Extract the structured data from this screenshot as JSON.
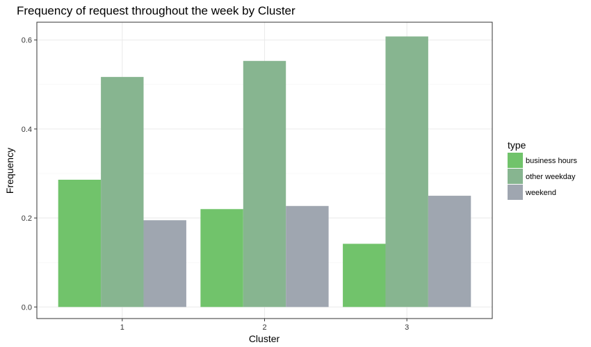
{
  "chart_data": {
    "type": "bar",
    "title": "Frequency of request throughout the week by Cluster",
    "xlabel": "Cluster",
    "ylabel": "Frequency",
    "categories": [
      "1",
      "2",
      "3"
    ],
    "ylim": [
      -0.026,
      0.64
    ],
    "yticks": [
      0.0,
      0.2,
      0.4,
      0.6
    ],
    "ytick_labels": [
      "0.0",
      "0.2",
      "0.4",
      "0.6"
    ],
    "grid": true,
    "legend": {
      "title": "type",
      "placement": "right"
    },
    "series": [
      {
        "name": "business hours",
        "color": "#71c36b",
        "values": [
          0.286,
          0.22,
          0.142
        ]
      },
      {
        "name": "other weekday",
        "color": "#87b590",
        "values": [
          0.517,
          0.553,
          0.608
        ]
      },
      {
        "name": "weekend",
        "color": "#9fa6b0",
        "values": [
          0.195,
          0.227,
          0.25
        ]
      }
    ]
  }
}
